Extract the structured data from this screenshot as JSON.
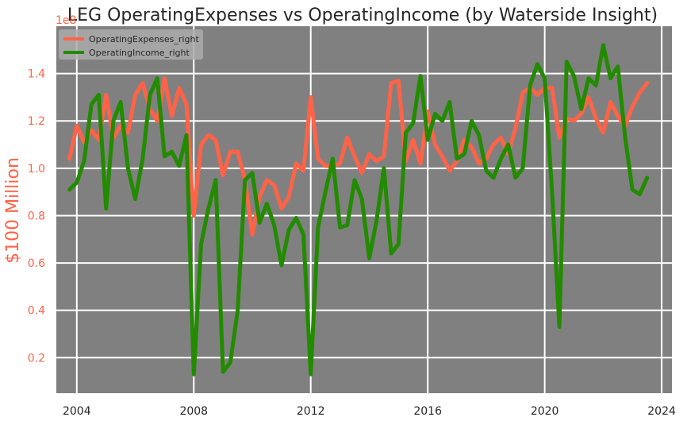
{
  "chart_data": {
    "type": "line",
    "title": "LEG OperatingExpenses vs OperatingIncome (by Waterside Insight)",
    "xlabel": "",
    "ylabel": "$100 Million",
    "y_offset_text": "1e8",
    "xlim": [
      2003.3,
      2024.35
    ],
    "ylim": [
      0.05,
      1.6
    ],
    "xticks": [
      2004,
      2008,
      2012,
      2016,
      2020,
      2024
    ],
    "yticks": [
      0.2,
      0.4,
      0.6,
      0.8,
      1.0,
      1.2,
      1.4
    ],
    "grid": true,
    "legend_position": "top-left",
    "background_color": "#808080",
    "grid_color": "#ffffff",
    "axis_label_color": "#ff6347",
    "series": [
      {
        "name": "OperatingExpenses_right",
        "color": "#ff6347",
        "x": [
          2003.75,
          2004.0,
          2004.25,
          2004.5,
          2004.75,
          2005.0,
          2005.25,
          2005.5,
          2005.75,
          2006.0,
          2006.25,
          2006.5,
          2006.75,
          2007.0,
          2007.25,
          2007.5,
          2007.75,
          2008.0,
          2008.25,
          2008.5,
          2008.75,
          2009.0,
          2009.25,
          2009.5,
          2009.75,
          2010.0,
          2010.25,
          2010.5,
          2010.75,
          2011.0,
          2011.25,
          2011.5,
          2011.75,
          2012.0,
          2012.25,
          2012.5,
          2012.75,
          2013.0,
          2013.25,
          2013.5,
          2013.75,
          2014.0,
          2014.25,
          2014.5,
          2014.75,
          2015.0,
          2015.25,
          2015.5,
          2015.75,
          2016.0,
          2016.25,
          2016.5,
          2016.75,
          2017.0,
          2017.25,
          2017.5,
          2017.75,
          2018.0,
          2018.25,
          2018.5,
          2018.75,
          2019.0,
          2019.25,
          2019.5,
          2019.75,
          2020.0,
          2020.25,
          2020.5,
          2020.75,
          2021.0,
          2021.25,
          2021.5,
          2021.75,
          2022.0,
          2022.25,
          2022.5,
          2022.75,
          2023.0,
          2023.25,
          2023.5
        ],
        "values": [
          1.04,
          1.18,
          1.11,
          1.16,
          1.12,
          1.31,
          1.13,
          1.18,
          1.15,
          1.31,
          1.36,
          1.25,
          1.2,
          1.38,
          1.22,
          1.34,
          1.27,
          0.8,
          1.1,
          1.14,
          1.12,
          0.97,
          1.07,
          1.07,
          0.95,
          0.72,
          0.88,
          0.95,
          0.93,
          0.83,
          0.88,
          1.02,
          0.99,
          1.3,
          1.04,
          1.01,
          1.01,
          1.02,
          1.13,
          1.05,
          0.98,
          1.06,
          1.03,
          1.05,
          1.36,
          1.37,
          1.03,
          1.12,
          1.02,
          1.24,
          1.1,
          1.05,
          0.99,
          1.03,
          1.12,
          1.09,
          1.02,
          1.04,
          1.1,
          1.13,
          1.06,
          1.17,
          1.32,
          1.34,
          1.31,
          1.34,
          1.34,
          1.13,
          1.21,
          1.2,
          1.23,
          1.3,
          1.21,
          1.15,
          1.28,
          1.22,
          1.18,
          1.26,
          1.32,
          1.36
        ]
      },
      {
        "name": "OperatingIncome_right",
        "color": "#228b00",
        "x": [
          2003.75,
          2004.0,
          2004.25,
          2004.5,
          2004.75,
          2005.0,
          2005.25,
          2005.5,
          2005.75,
          2006.0,
          2006.25,
          2006.5,
          2006.75,
          2007.0,
          2007.25,
          2007.5,
          2007.75,
          2008.0,
          2008.25,
          2008.5,
          2008.75,
          2009.0,
          2009.25,
          2009.5,
          2009.75,
          2010.0,
          2010.25,
          2010.5,
          2010.75,
          2011.0,
          2011.25,
          2011.5,
          2011.75,
          2012.0,
          2012.25,
          2012.5,
          2012.75,
          2013.0,
          2013.25,
          2013.5,
          2013.75,
          2014.0,
          2014.25,
          2014.5,
          2014.75,
          2015.0,
          2015.25,
          2015.5,
          2015.75,
          2016.0,
          2016.25,
          2016.5,
          2016.75,
          2017.0,
          2017.25,
          2017.5,
          2017.75,
          2018.0,
          2018.25,
          2018.5,
          2018.75,
          2019.0,
          2019.25,
          2019.5,
          2019.75,
          2020.0,
          2020.25,
          2020.5,
          2020.75,
          2021.0,
          2021.25,
          2021.5,
          2021.75,
          2022.0,
          2022.25,
          2022.5,
          2022.75,
          2023.0,
          2023.25,
          2023.5
        ],
        "values": [
          0.91,
          0.94,
          1.03,
          1.27,
          1.31,
          0.83,
          1.2,
          1.28,
          1.0,
          0.87,
          1.04,
          1.31,
          1.38,
          1.05,
          1.07,
          1.01,
          1.14,
          0.13,
          0.68,
          0.83,
          0.95,
          0.14,
          0.18,
          0.4,
          0.95,
          0.98,
          0.77,
          0.85,
          0.76,
          0.59,
          0.74,
          0.79,
          0.72,
          0.13,
          0.75,
          0.9,
          1.04,
          0.75,
          0.76,
          0.95,
          0.87,
          0.62,
          0.78,
          1.0,
          0.64,
          0.68,
          1.15,
          1.19,
          1.39,
          1.12,
          1.23,
          1.2,
          1.28,
          1.04,
          1.06,
          1.2,
          1.14,
          0.99,
          0.96,
          1.04,
          1.1,
          0.96,
          1.0,
          1.35,
          1.44,
          1.38,
          0.9,
          0.33,
          1.45,
          1.39,
          1.25,
          1.38,
          1.35,
          1.52,
          1.38,
          1.43,
          1.13,
          0.91,
          0.89,
          0.96
        ]
      }
    ]
  }
}
